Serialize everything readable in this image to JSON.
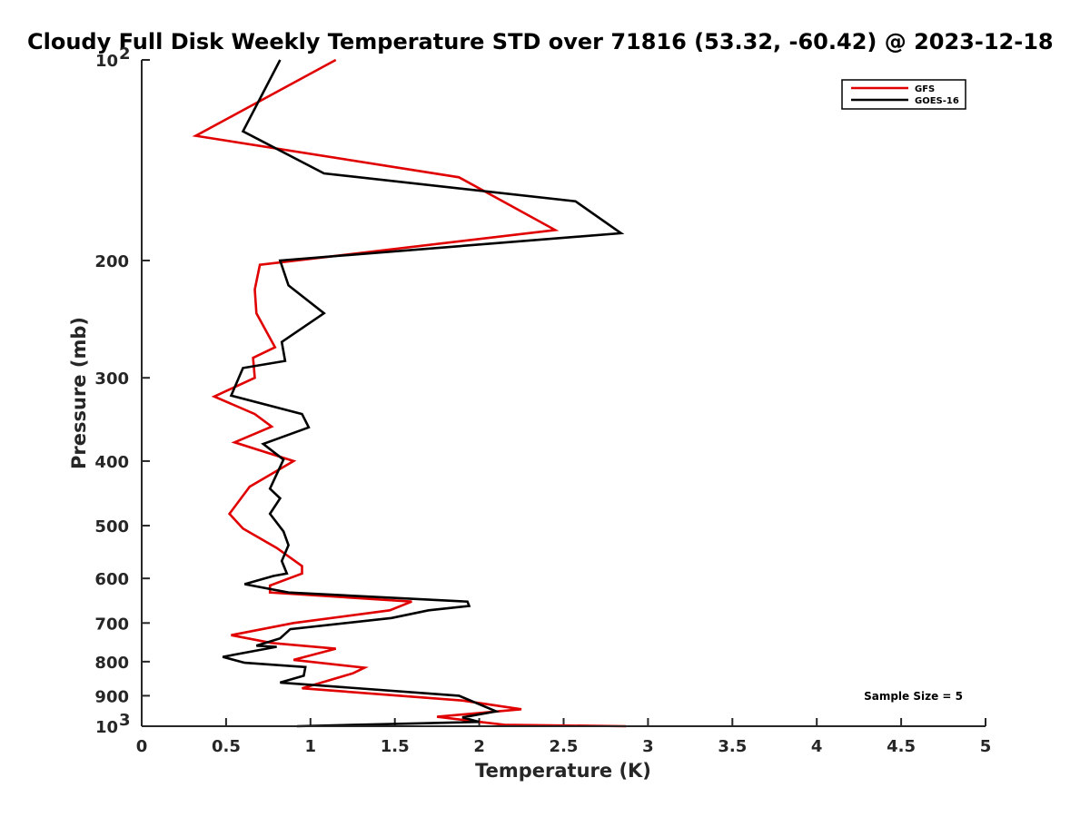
{
  "chart_data": {
    "type": "line",
    "title": "Cloudy Full Disk Weekly Temperature STD over 71816 (53.32, -60.42) @ 2023-12-18",
    "xlabel": "Temperature (K)",
    "ylabel": "Pressure (mb)",
    "xlim": [
      0,
      5
    ],
    "ylim": [
      100,
      1000
    ],
    "y_scale": "log",
    "y_reversed": true,
    "grid": false,
    "legend_position": "top-right",
    "x_ticks": [
      "0",
      "0.5",
      "1",
      "1.5",
      "2",
      "2.5",
      "3",
      "3.5",
      "4",
      "4.5",
      "5"
    ],
    "y_ticks": [
      {
        "value": 100,
        "base": "10",
        "exp": "2"
      },
      {
        "value": 200,
        "label": "200"
      },
      {
        "value": 300,
        "label": "300"
      },
      {
        "value": 400,
        "label": "400"
      },
      {
        "value": 500,
        "label": "500"
      },
      {
        "value": 600,
        "label": "600"
      },
      {
        "value": 700,
        "label": "700"
      },
      {
        "value": 800,
        "label": "800"
      },
      {
        "value": 900,
        "label": "900"
      },
      {
        "value": 1000,
        "base": "10",
        "exp": "3"
      }
    ],
    "series": [
      {
        "name": "GFS",
        "color": "#e00000",
        "x": [
          1.15,
          0.32,
          1.88,
          2.45,
          0.7,
          0.67,
          0.68,
          0.79,
          0.66,
          0.67,
          0.43,
          0.67,
          0.77,
          0.55,
          0.9,
          0.64,
          0.52,
          0.6,
          0.8,
          0.95,
          0.95,
          0.76,
          0.76,
          1.6,
          1.47,
          0.9,
          0.53,
          0.77,
          1.15,
          0.9,
          1.32,
          1.25,
          0.95,
          1.9,
          2.25,
          1.75,
          2.0,
          2.15,
          2.87
        ],
        "y": [
          100,
          130,
          150,
          180,
          203,
          221,
          240,
          270,
          280,
          300,
          320,
          340,
          355,
          375,
          400,
          437,
          480,
          505,
          540,
          575,
          590,
          615,
          630,
          650,
          670,
          700,
          730,
          750,
          765,
          795,
          817,
          833,
          877,
          915,
          943,
          968,
          985,
          995,
          1000
        ]
      },
      {
        "name": "GOES-16",
        "color": "#000000",
        "x": [
          0.82,
          0.6,
          1.08,
          2.57,
          2.84,
          0.82,
          0.87,
          1.08,
          0.83,
          0.85,
          0.6,
          0.53,
          0.95,
          0.99,
          0.72,
          0.84,
          0.76,
          0.82,
          0.76,
          0.84,
          0.87,
          0.83,
          0.86,
          0.78,
          0.61,
          0.87,
          1.93,
          1.94,
          1.7,
          1.48,
          0.88,
          0.82,
          0.68,
          0.8,
          0.48,
          0.61,
          0.97,
          0.96,
          0.82,
          1.88,
          2.1,
          1.9,
          2.0,
          1.65,
          0.92
        ],
        "y": [
          100,
          128,
          148,
          163,
          182,
          200,
          218,
          240,
          265,
          283,
          290,
          319,
          340,
          356,
          377,
          398,
          440,
          455,
          480,
          510,
          535,
          565,
          590,
          595,
          612,
          630,
          650,
          660,
          670,
          688,
          715,
          738,
          757,
          760,
          787,
          803,
          815,
          840,
          860,
          900,
          950,
          970,
          985,
          990,
          1000
        ]
      }
    ],
    "annotation": "Sample Size = 5"
  }
}
